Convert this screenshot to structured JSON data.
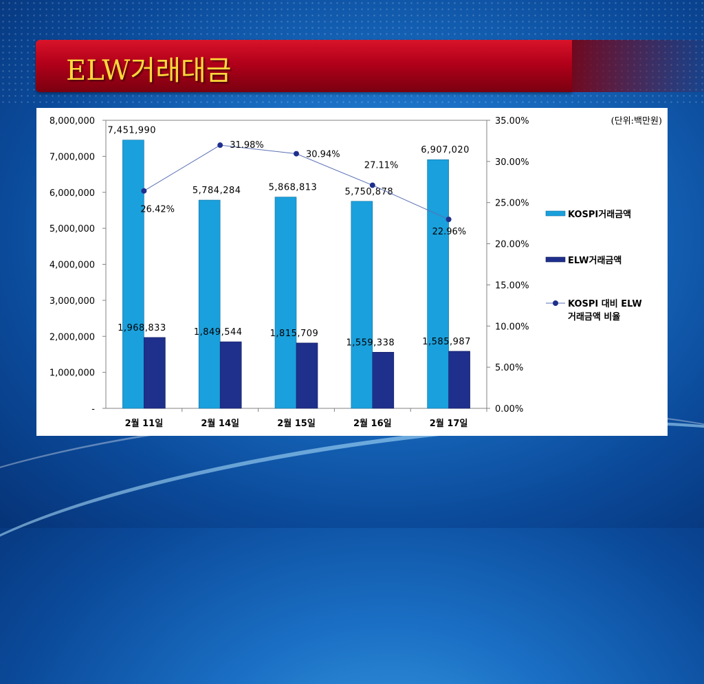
{
  "slide": {
    "title": "ELW거래대금",
    "unit_note": "(단위:백만원)"
  },
  "colors": {
    "kospi_bar": "#1aa0dc",
    "elw_bar": "#1f2f8c",
    "ratio_line": "#5a6fb4",
    "ratio_marker": "#1f2f8c",
    "title_text": "#ffd93a"
  },
  "chart_data": {
    "type": "bar",
    "categories": [
      "2월 11일",
      "2월 14일",
      "2월 15일",
      "2월 16일",
      "2월 17일"
    ],
    "series": [
      {
        "name": "KOSPI거래금액",
        "type": "bar",
        "axis": "left",
        "values": [
          7451990,
          5784284,
          5868813,
          5750878,
          6907020
        ],
        "labels": [
          "7,451,990",
          "5,784,284",
          "5,868,813",
          "5,750,878",
          "6,907,020"
        ]
      },
      {
        "name": "ELW거래금액",
        "type": "bar",
        "axis": "left",
        "values": [
          1968833,
          1849544,
          1815709,
          1559338,
          1585987
        ],
        "labels": [
          "1,968,833",
          "1,849,544",
          "1,815,709",
          "1,559,338",
          "1,585,987"
        ]
      },
      {
        "name": "KOSPI 대비 ELW 거래금액 비율",
        "legend_lines": [
          "KOSPI 대비 ELW",
          "거래금액 비율"
        ],
        "type": "line",
        "axis": "right",
        "values": [
          26.42,
          31.98,
          30.94,
          27.11,
          22.96
        ],
        "labels": [
          "26.42%",
          "31.98%",
          "30.94%",
          "27.11%",
          "22.96%"
        ]
      }
    ],
    "left_axis": {
      "range": [
        0,
        8000000
      ],
      "ticks": [
        0,
        1000000,
        2000000,
        3000000,
        4000000,
        5000000,
        6000000,
        7000000,
        8000000
      ],
      "tick_labels": [
        "-",
        "1,000,000",
        "2,000,000",
        "3,000,000",
        "4,000,000",
        "5,000,000",
        "6,000,000",
        "7,000,000",
        "8,000,000"
      ]
    },
    "right_axis": {
      "range": [
        0,
        35
      ],
      "ticks": [
        0,
        5,
        10,
        15,
        20,
        25,
        30,
        35
      ],
      "tick_labels": [
        "0.00%",
        "5.00%",
        "10.00%",
        "15.00%",
        "20.00%",
        "25.00%",
        "30.00%",
        "35.00%"
      ]
    },
    "legend_position": "right",
    "grid": false
  }
}
